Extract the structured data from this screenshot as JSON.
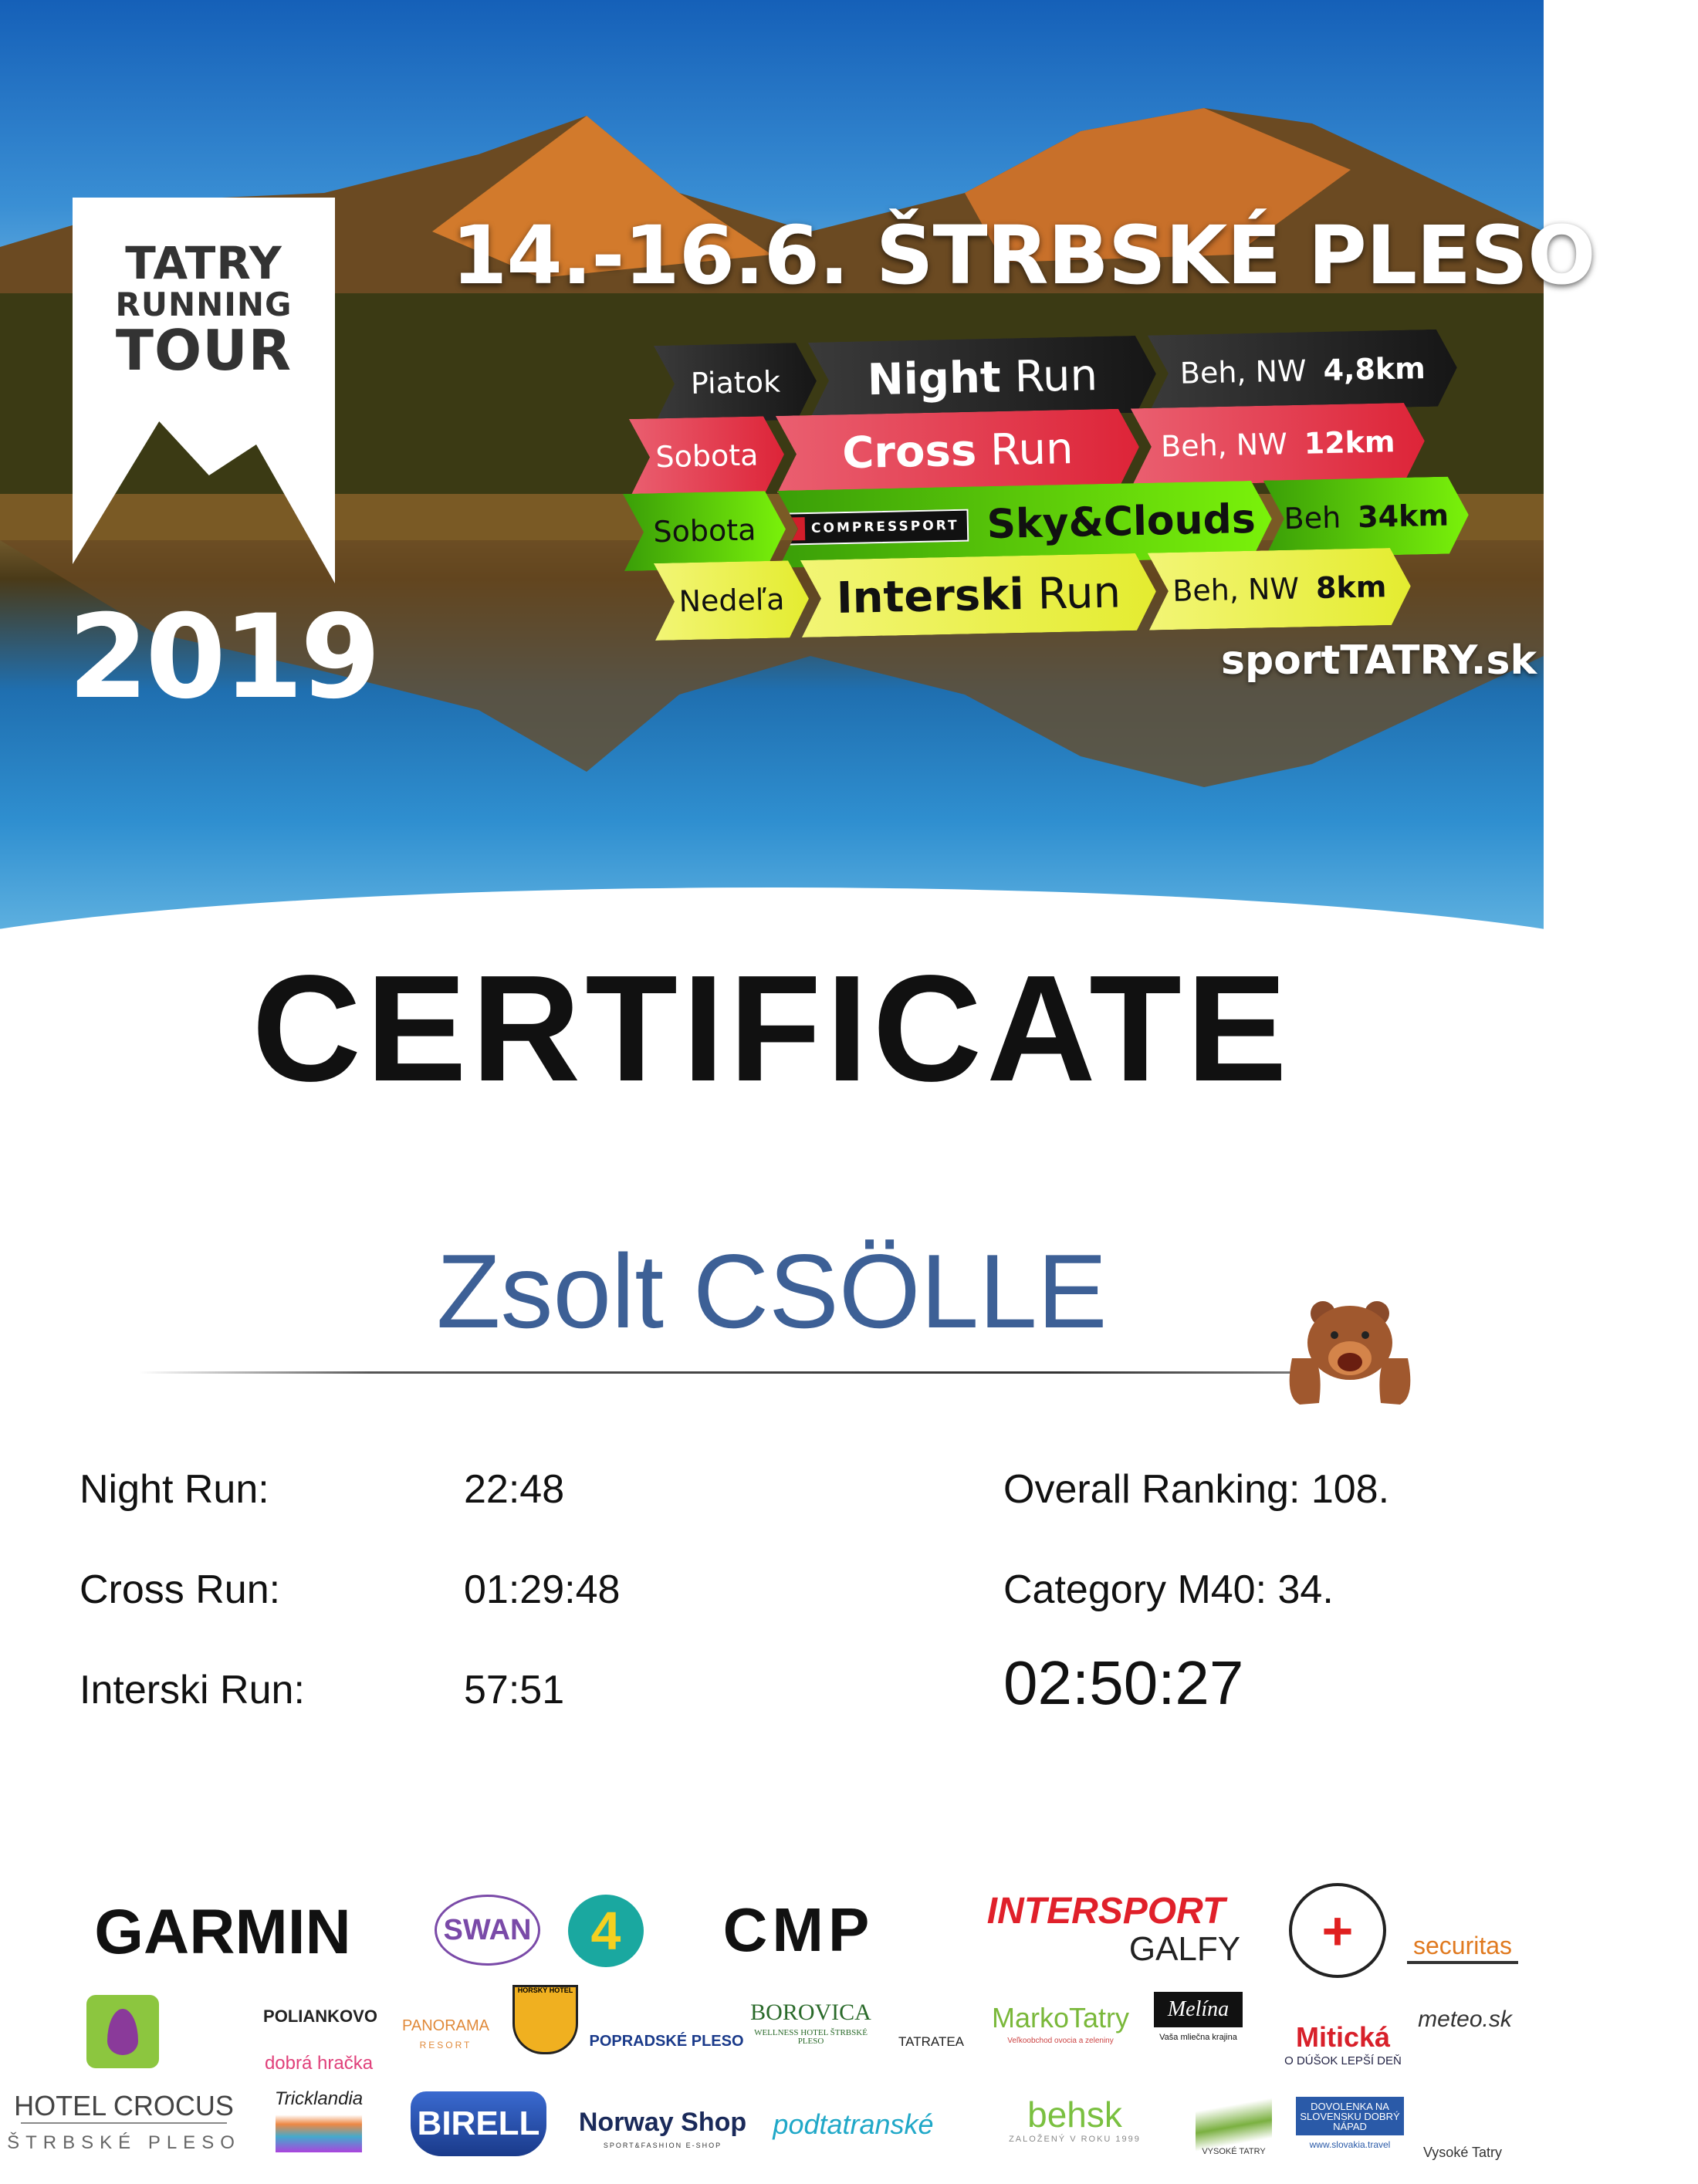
{
  "hero": {
    "logo": {
      "line1": "TATRY",
      "line2": "RUNNING",
      "line3": "TOUR",
      "year": "2019"
    },
    "title": "14.-16.6.  ŠTRBSKÉ PLESO",
    "races": [
      {
        "day": "Piatok",
        "name_bold": "Night",
        "name_rest": "Run",
        "type": "Beh, NW",
        "distance": "4,8km",
        "color": "#1f1f1f"
      },
      {
        "day": "Sobota",
        "name_bold": "Cross",
        "name_rest": "Run",
        "type": "Beh, NW",
        "distance": "12km",
        "color": "#e0334a"
      },
      {
        "day": "Sobota",
        "sponsor": "COMPRESSPORT",
        "name_bold": "Sky&Clouds",
        "name_rest": "",
        "type": "Beh",
        "distance": "34km",
        "color": "#6ee010"
      },
      {
        "day": "Nedeľa",
        "name_bold": "Interski",
        "name_rest": "Run",
        "type": "Beh, NW",
        "distance": "8km",
        "color": "#e8f040"
      }
    ],
    "website": "sportTATRY.sk"
  },
  "certificate": {
    "title": "CERTIFICATE",
    "participant": "Zsolt CSÖLLE",
    "name_color": "#3d6096",
    "mascot": "bear-icon",
    "results": [
      {
        "label": "Night Run:",
        "time": "22:48"
      },
      {
        "label": "Cross Run:",
        "time": "01:29:48"
      },
      {
        "label": "Interski Run:",
        "time": "57:51"
      }
    ],
    "overall_ranking": "Overall Ranking: 108.",
    "category_ranking": "Category M40: 34.",
    "total_time": "02:50:27"
  },
  "sponsors": {
    "garmin": "GARMIN",
    "swan": "SWAN",
    "fourka": "4",
    "cmp": "CMP",
    "intersport": "INTERSPORT",
    "galfy": "GALFY",
    "tanap": "+",
    "securitas": "securitas",
    "polianko": "POLIANKOVO",
    "dobra": "dobrá hračka",
    "panorama": "PANORAMA",
    "panorama_sub": "RESORT",
    "horsky": "HORSKÝ HOTEL",
    "popradske": "POPRADSKÉ PLESO",
    "borovica": "BOROVICA",
    "borovica_sub": "WELLNESS HOTEL ŠTRBSKÉ PLESO",
    "tatratea": "TATRATEA",
    "marko": "MarkoTatry",
    "marko_sub": "Veľkoobchod ovocia a zeleniny",
    "melina": "Melína",
    "melina_sub": "Vaša mliečna krajina",
    "miticka": "Mitická",
    "miticka_sub": "O DÚŠOK LEPŠÍ DEŇ",
    "meteo": "meteo.sk",
    "crocus": "HOTEL CROCUS",
    "crocus_sub": "ŠTRBSKÉ PLESO",
    "tricklandia": "Tricklandia",
    "birell": "BIRELL",
    "norway": "Norway Shop",
    "norway_sub": "SPORT&FASHION E-SHOP",
    "podtatranske": "podtatranské",
    "behsk": "behsk",
    "behsk_sub": "ZALOŽENÝ V ROKU 1999",
    "vysoke": "VYSOKÉ TATRY",
    "slovakia": "DOVOLENKA NA SLOVENSKU DOBRÝ NÁPAD",
    "slovakia_sub": "www.slovakia.travel",
    "region": "Vysoké Tatry"
  }
}
